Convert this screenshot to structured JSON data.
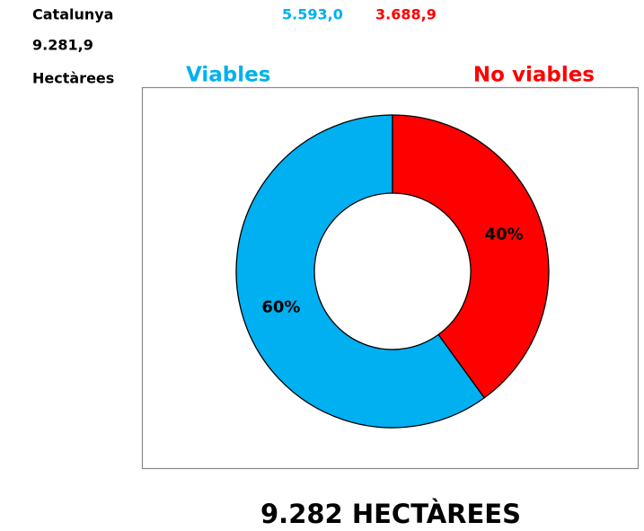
{
  "sheet": {
    "region": "Catalunya",
    "total": "9.281,9",
    "unit": "Hectàrees",
    "cells": [
      {
        "text": "5.593,0",
        "color": "#00b0f0"
      },
      {
        "text": "3.688,9",
        "color": "#ff0000"
      }
    ]
  },
  "chart_data": {
    "type": "pie",
    "donut": true,
    "categories": [
      "Viables",
      "No viables"
    ],
    "values": [
      60,
      40
    ],
    "value_labels": [
      "60%",
      "40%"
    ],
    "colors": [
      "#00b0f0",
      "#ff0000"
    ]
  },
  "footer": "9.282 HECTÀREES"
}
